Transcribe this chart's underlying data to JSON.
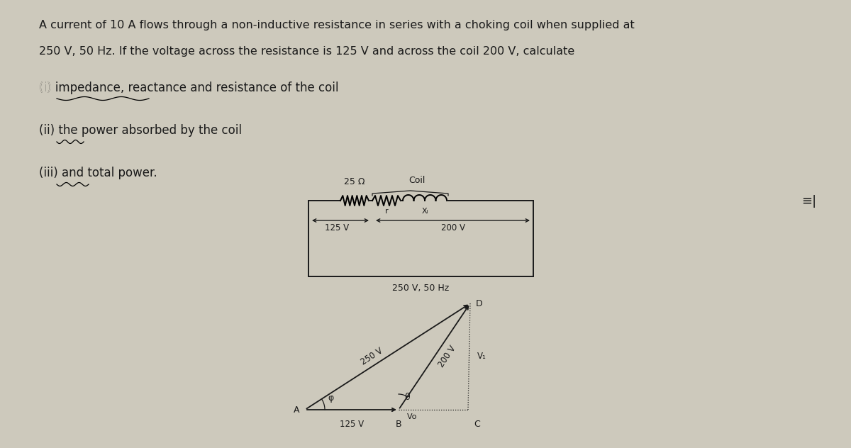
{
  "bg_color": "#cdc9bc",
  "text_color": "#1a1a1a",
  "title_lines": [
    "A current of 10 A flows through a non-inductive resistance in series with a choking coil when supplied at",
    "250 V, 50 Hz. If the voltage across the resistance is 125 V and across the coil 200 V, calculate"
  ],
  "items": [
    "(i) impedance, reactance and resistance of the coil",
    "(ii) the power absorbed by the coil",
    "(iii) and total power."
  ],
  "circuit_label_25ohm": "25 Ω",
  "circuit_label_coil": "Coil",
  "circuit_label_R": "r",
  "circuit_label_XL": "Xₗ",
  "circuit_label_125V": "125 V",
  "circuit_label_200V": "200 V",
  "circuit_label_supply": "250 V, 50 Hz",
  "phasor_label_A": "A",
  "phasor_label_B": "B",
  "phasor_label_C": "C",
  "phasor_label_D": "D",
  "phasor_label_125V": "125 V",
  "phasor_label_200V": "200 V",
  "phasor_label_250V": "250 V",
  "phasor_label_VR": "Vᴏ",
  "phasor_label_V1": "V₁",
  "phasor_label_phi": "φ",
  "phasor_label_theta": "θ",
  "icon_text": "≡|"
}
